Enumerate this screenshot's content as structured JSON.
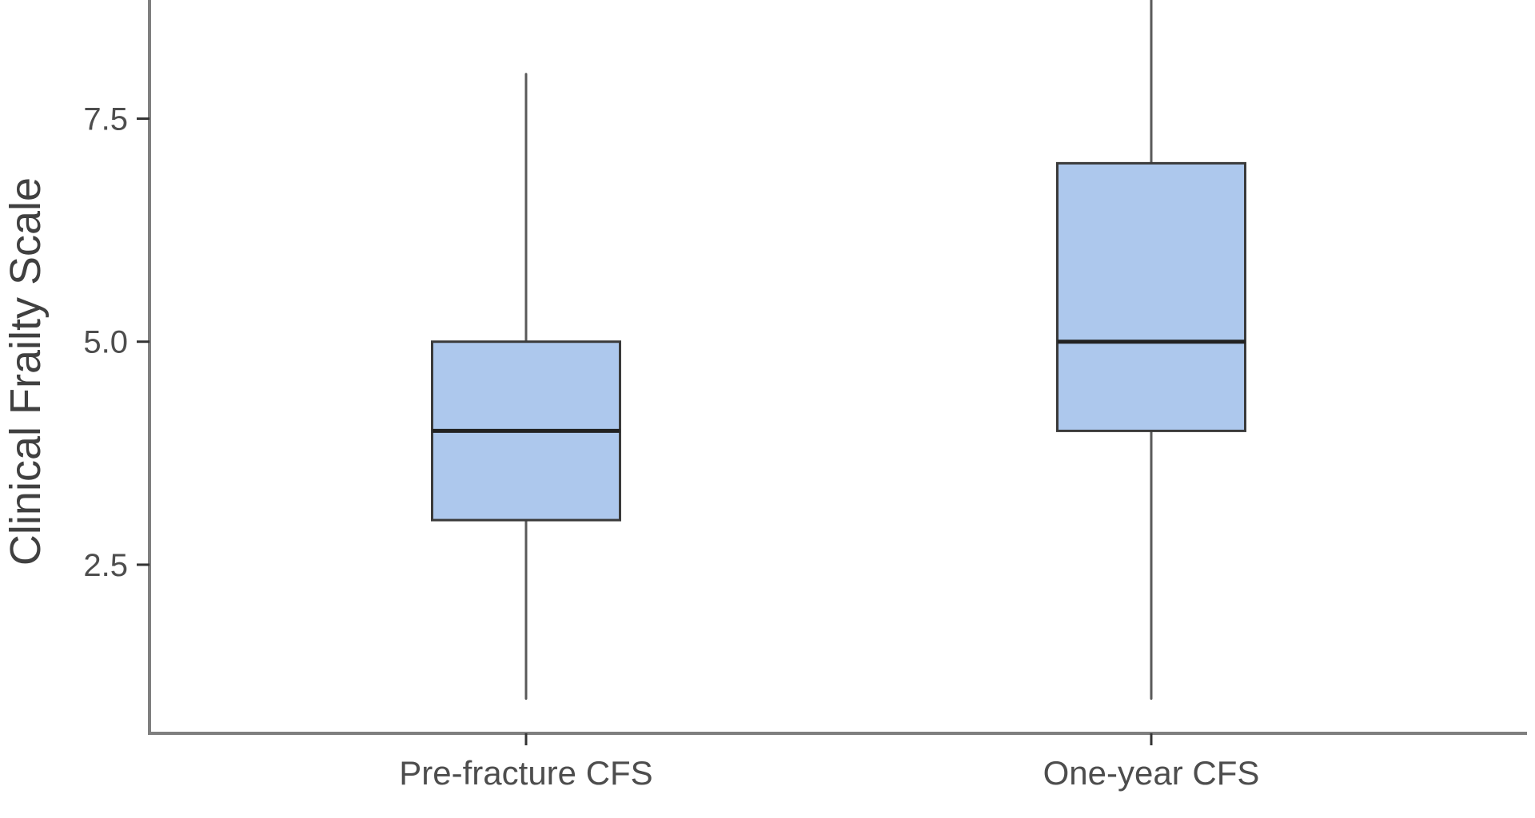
{
  "chart_data": {
    "type": "boxplot",
    "title": "",
    "xlabel": "",
    "ylabel": "Clinical Frailty Scale",
    "categories": [
      "Pre-fracture CFS",
      "One-year CFS"
    ],
    "series": [
      {
        "name": "Pre-fracture CFS",
        "whisker_low": 1,
        "q1": 3,
        "median": 4,
        "q3": 5,
        "whisker_high": 8
      },
      {
        "name": "One-year CFS",
        "whisker_low": 1,
        "q1": 4,
        "median": 5,
        "q3": 7,
        "whisker_high": 9
      }
    ],
    "yticks": [
      {
        "value": 2.5,
        "label": "2.5"
      },
      {
        "value": 5.0,
        "label": "5.0"
      },
      {
        "value": 7.5,
        "label": "7.5"
      }
    ],
    "ylim": [
      0.61,
      8.83
    ],
    "grid": false,
    "legend": null,
    "colors": {
      "background": "#ffffff",
      "box_fill": "#adc8ed",
      "box_border": "#3a3a3a",
      "median": "#222222",
      "whisker": "#5a5a5a",
      "axis": "#7f7f7f",
      "tick": "#333333",
      "tick_label": "#4d4d4d",
      "axis_title": "#404040"
    }
  }
}
